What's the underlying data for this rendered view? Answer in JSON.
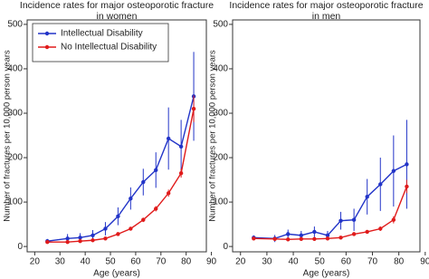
{
  "chart_data": [
    {
      "type": "line",
      "title": [
        "Incidence rates for major osteoporotic fracture",
        "in women"
      ],
      "xlabel": "Age (years)",
      "ylabel": "Number of fractures per 10,000 person years",
      "xlim": [
        17,
        88
      ],
      "ylim": [
        -12,
        510
      ],
      "xticks": [
        20,
        30,
        40,
        50,
        60,
        70,
        80,
        90
      ],
      "yticks": [
        0,
        100,
        200,
        300,
        400,
        500
      ],
      "legend": "upper left",
      "x": [
        25,
        33,
        38,
        43,
        48,
        53,
        58,
        63,
        68,
        73,
        78,
        83
      ],
      "series": [
        {
          "name": "Intellectual Disability",
          "color": "#2234c8",
          "values": [
            12,
            18,
            20,
            25,
            40,
            68,
            108,
            145,
            172,
            243,
            225,
            338
          ],
          "errors": [
            5,
            10,
            10,
            12,
            15,
            20,
            25,
            30,
            40,
            70,
            60,
            100
          ]
        },
        {
          "name": "No Intellectual Disability",
          "color": "#e01b1b",
          "values": [
            10,
            10,
            12,
            14,
            18,
            28,
            40,
            60,
            85,
            120,
            165,
            310
          ],
          "errors": [
            2,
            2,
            2,
            2,
            3,
            3,
            4,
            5,
            6,
            8,
            10,
            30
          ]
        }
      ]
    },
    {
      "type": "line",
      "title": [
        "Incidence rates for major osteoporotic fracture",
        "in men"
      ],
      "xlabel": "Age (years)",
      "ylabel": "Number of fractures per 10,000 person years",
      "xlim": [
        17,
        88
      ],
      "ylim": [
        -12,
        510
      ],
      "xticks": [
        20,
        30,
        40,
        50,
        60,
        70,
        80,
        90
      ],
      "yticks": [
        0,
        100,
        200,
        300,
        400,
        500
      ],
      "x": [
        25,
        33,
        38,
        43,
        48,
        53,
        58,
        63,
        68,
        73,
        78,
        83
      ],
      "series": [
        {
          "color": "#2234c8",
          "values": [
            20,
            18,
            28,
            25,
            33,
            25,
            58,
            60,
            112,
            140,
            170,
            185
          ],
          "errors": [
            5,
            8,
            10,
            10,
            12,
            10,
            20,
            25,
            40,
            60,
            80,
            100
          ]
        },
        {
          "color": "#e01b1b",
          "values": [
            18,
            17,
            16,
            17,
            17,
            18,
            20,
            28,
            33,
            40,
            60,
            135
          ],
          "errors": [
            2,
            2,
            2,
            2,
            2,
            2,
            3,
            3,
            4,
            5,
            8,
            15
          ]
        }
      ]
    }
  ]
}
